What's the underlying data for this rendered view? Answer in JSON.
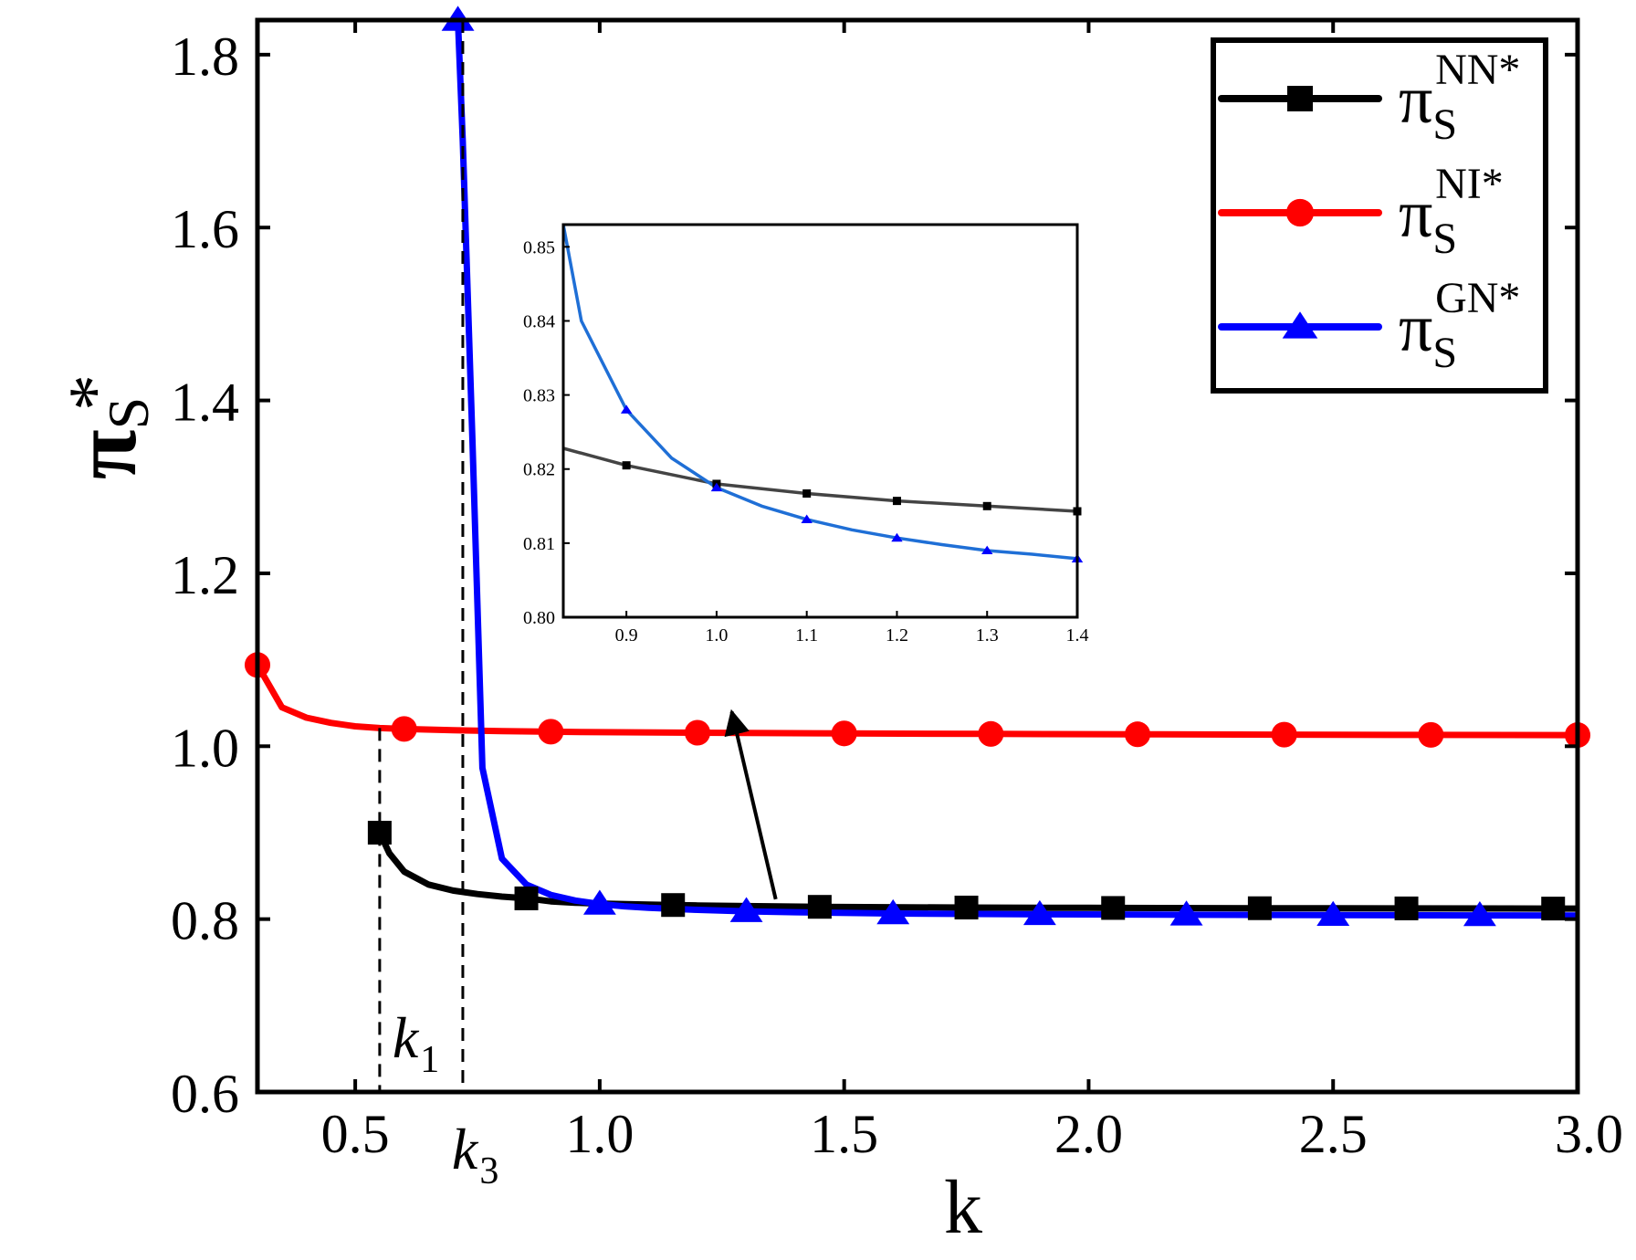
{
  "chart_data": {
    "type": "line",
    "xlabel": "k",
    "ylabel": {
      "base": "π",
      "sub": "S",
      "sup": "*"
    },
    "xlim": [
      0.3,
      3.0
    ],
    "ylim": [
      0.6,
      1.84
    ],
    "x_ticks": [
      0.5,
      1.0,
      1.5,
      2.0,
      2.5,
      3.0
    ],
    "x_tick_labels": [
      "0.5",
      "1.0",
      "1.5",
      "2.0",
      "2.5",
      "3.0"
    ],
    "y_ticks": [
      0.6,
      0.8,
      1.0,
      1.2,
      1.4,
      1.6,
      1.8
    ],
    "y_tick_labels": [
      "0.6",
      "0.8",
      "1.0",
      "1.2",
      "1.4",
      "1.6",
      "1.8"
    ],
    "legend_position": "top-right",
    "series": [
      {
        "name": "NN",
        "label": {
          "base": "π",
          "sub": "S",
          "sup": "NN*"
        },
        "color": "#000000",
        "marker": "square",
        "x": [
          0.55,
          0.57,
          0.6,
          0.65,
          0.7,
          0.75,
          0.8,
          0.85,
          0.9,
          0.95,
          1.0,
          1.1,
          1.15,
          1.2,
          1.3,
          1.45,
          1.5,
          1.75,
          2.0,
          2.05,
          2.35,
          2.5,
          2.65,
          2.95,
          3.0
        ],
        "y": [
          0.9,
          0.876,
          0.855,
          0.84,
          0.833,
          0.829,
          0.826,
          0.824,
          0.8205,
          0.819,
          0.818,
          0.8167,
          0.8163,
          0.8158,
          0.815,
          0.8142,
          0.814,
          0.8134,
          0.813,
          0.8129,
          0.8126,
          0.8125,
          0.8124,
          0.8122,
          0.8122
        ],
        "marker_x": [
          0.55,
          0.85,
          1.15,
          1.45,
          1.75,
          2.05,
          2.35,
          2.65,
          2.95
        ]
      },
      {
        "name": "NI",
        "label": {
          "base": "π",
          "sub": "S",
          "sup": "NI*"
        },
        "color": "#ff0000",
        "marker": "circle",
        "x": [
          0.3,
          0.35,
          0.4,
          0.45,
          0.5,
          0.55,
          0.6,
          0.7,
          0.8,
          0.9,
          1.0,
          1.2,
          1.5,
          1.8,
          2.1,
          2.4,
          2.7,
          3.0
        ],
        "y": [
          1.094,
          1.045,
          1.033,
          1.027,
          1.023,
          1.021,
          1.02,
          1.0185,
          1.0175,
          1.0168,
          1.0163,
          1.0156,
          1.0148,
          1.0142,
          1.0138,
          1.0134,
          1.0131,
          1.0129
        ],
        "marker_x": [
          0.3,
          0.6,
          0.9,
          1.2,
          1.5,
          1.8,
          2.1,
          2.4,
          2.7,
          3.0
        ]
      },
      {
        "name": "GN",
        "label": {
          "base": "π",
          "sub": "S",
          "sup": "GN*"
        },
        "color": "#0000ff",
        "marker": "triangle",
        "x": [
          0.71,
          0.72,
          0.74,
          0.76,
          0.8,
          0.85,
          0.9,
          0.95,
          1.0,
          1.05,
          1.1,
          1.2,
          1.3,
          1.4,
          1.6,
          1.9,
          2.2,
          2.5,
          2.8,
          3.0
        ],
        "y": [
          1.84,
          1.7,
          1.35,
          0.975,
          0.87,
          0.84,
          0.828,
          0.8215,
          0.8175,
          0.8148,
          0.813,
          0.8107,
          0.809,
          0.808,
          0.8065,
          0.8055,
          0.805,
          0.8046,
          0.8043,
          0.8042
        ],
        "marker_x": [
          0.71,
          1.0,
          1.3,
          1.6,
          1.9,
          2.2,
          2.5,
          2.8
        ]
      }
    ],
    "vertical_markers": [
      {
        "label": "k",
        "sub": "1",
        "x": 0.55,
        "y_top": 1.021
      },
      {
        "label": "k",
        "sub": "3",
        "x": 0.72,
        "y_top": 1.84
      }
    ],
    "arrow": {
      "from": [
        1.36,
        0.823
      ],
      "to": [
        1.27,
        1.04
      ]
    },
    "inset": {
      "type": "line",
      "xlim": [
        0.83,
        1.4
      ],
      "ylim": [
        0.8,
        0.853
      ],
      "x_ticks": [
        0.9,
        1.0,
        1.1,
        1.2,
        1.3,
        1.4
      ],
      "x_tick_labels": [
        "0.9",
        "1.0",
        "1.1",
        "1.2",
        "1.3",
        "1.4"
      ],
      "y_ticks": [
        0.8,
        0.81,
        0.82,
        0.83,
        0.84,
        0.85
      ],
      "y_tick_labels": [
        "0.80",
        "0.81",
        "0.82",
        "0.83",
        "0.84",
        "0.85"
      ],
      "series": [
        {
          "name": "NN",
          "color": "#444444",
          "marker": "square",
          "x": [
            0.83,
            0.9,
            1.0,
            1.1,
            1.2,
            1.3,
            1.4
          ],
          "y": [
            0.8228,
            0.8205,
            0.818,
            0.8167,
            0.8157,
            0.815,
            0.8143
          ],
          "marker_x": [
            0.9,
            1.0,
            1.1,
            1.2,
            1.3,
            1.4
          ]
        },
        {
          "name": "GN",
          "color": "#1f6fd6",
          "marker": "triangle",
          "x": [
            0.83,
            0.85,
            0.9,
            0.95,
            1.0,
            1.05,
            1.1,
            1.15,
            1.2,
            1.25,
            1.3,
            1.35,
            1.4
          ],
          "y": [
            0.853,
            0.84,
            0.828,
            0.8215,
            0.8175,
            0.815,
            0.8132,
            0.8118,
            0.8107,
            0.8098,
            0.809,
            0.8085,
            0.8079
          ],
          "marker_x": [
            0.9,
            1.0,
            1.1,
            1.2,
            1.3,
            1.4
          ]
        }
      ]
    }
  }
}
